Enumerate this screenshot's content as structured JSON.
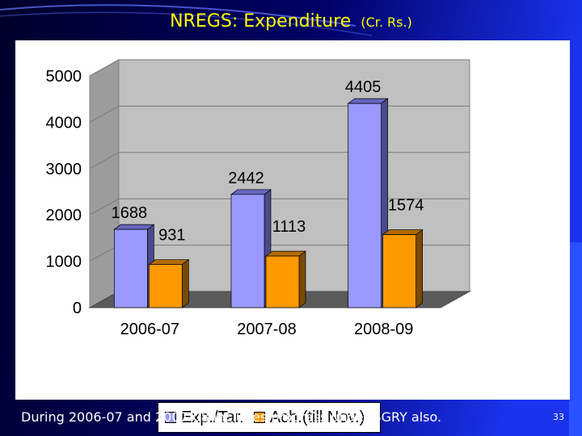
{
  "slide": {
    "title": "NREGS: Expenditure",
    "title_unit": "(Cr. Rs.)",
    "footer_note": "During 2006-07 and 2007-08 includes progress under SGRY also.",
    "page_number": "33",
    "colors": {
      "background_dark": "#000033",
      "background_blue": "#1133dd",
      "title": "#ffff00",
      "footer": "#ffffff"
    }
  },
  "chart_data": {
    "type": "bar",
    "categories": [
      "2006-07",
      "2007-08",
      "2008-09"
    ],
    "series": [
      {
        "name": "Exp./Tar.",
        "values": [
          1688,
          2442,
          4405
        ],
        "color": "#9999ff",
        "side_color": "#4a4a8c",
        "top_color": "#6666c0"
      },
      {
        "name": "Ach.(till Nov.)",
        "values": [
          931,
          1113,
          1574
        ],
        "color": "#ff9900",
        "side_color": "#7a4a00",
        "top_color": "#b36b00"
      }
    ],
    "data_labels": [
      [
        "1688",
        "2442",
        "4405"
      ],
      [
        "931",
        "1113",
        "1574"
      ]
    ],
    "y_ticks": [
      0,
      1000,
      2000,
      3000,
      4000,
      5000
    ],
    "ylim": [
      0,
      5000
    ],
    "grid": true,
    "legend_position": "bottom",
    "style": "3d-clustered-column"
  }
}
